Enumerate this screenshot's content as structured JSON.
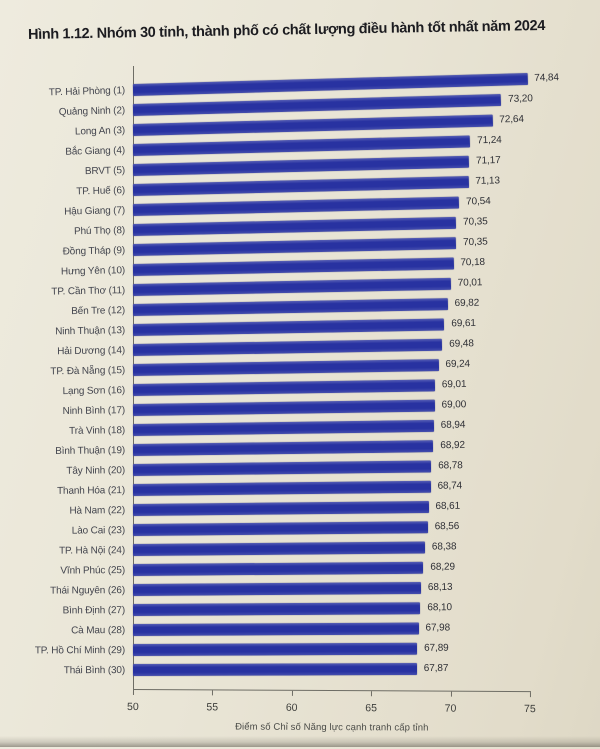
{
  "page": {
    "title": "Hình 1.12. Nhóm 30 tỉnh, thành phố có chất lượng điều hành tốt nhất năm 2024"
  },
  "colors": {
    "bar": "#2832a1",
    "paper": "#e9e5d6",
    "axis": "#6e6d65"
  },
  "chart_data": {
    "type": "bar",
    "orientation": "horizontal",
    "title": "Hình 1.12. Nhóm 30 tỉnh, thành phố có chất lượng điều hành tốt nhất năm 2024",
    "xlabel": "Điểm số Chỉ số Năng lực cạnh tranh cấp tỉnh",
    "ylabel": "",
    "xlim": [
      50,
      75
    ],
    "xticks": [
      50,
      55,
      60,
      65,
      70,
      75
    ],
    "grid": false,
    "legend": null,
    "categories": [
      "TP. Hải Phòng (1)",
      "Quảng Ninh (2)",
      "Long An (3)",
      "Bắc Giang (4)",
      "BRVT (5)",
      "TP. Huế (6)",
      "Hậu Giang (7)",
      "Phú Thọ (8)",
      "Đồng Tháp (9)",
      "Hưng Yên (10)",
      "TP. Cần Thơ (11)",
      "Bến Tre (12)",
      "Ninh Thuận (13)",
      "Hải Dương (14)",
      "TP. Đà Nẵng (15)",
      "Lạng Sơn (16)",
      "Ninh Bình (17)",
      "Trà Vinh (18)",
      "Bình Thuận (19)",
      "Tây Ninh (20)",
      "Thanh Hóa (21)",
      "Hà Nam (22)",
      "Lào Cai (23)",
      "TP. Hà Nội (24)",
      "Vĩnh Phúc (25)",
      "Thái Nguyên (26)",
      "Bình Định (27)",
      "Cà Mau (28)",
      "TP. Hồ Chí Minh (29)",
      "Thái Bình (30)"
    ],
    "values": [
      74.84,
      73.2,
      72.64,
      71.24,
      71.17,
      71.13,
      70.54,
      70.35,
      70.35,
      70.18,
      70.01,
      69.82,
      69.61,
      69.48,
      69.24,
      69.01,
      69.0,
      68.94,
      68.92,
      68.78,
      68.74,
      68.61,
      68.56,
      68.38,
      68.29,
      68.13,
      68.1,
      67.98,
      67.89,
      67.87
    ],
    "value_labels": [
      "74,84",
      "73,20",
      "72,64",
      "71,24",
      "71,17",
      "71,13",
      "70,54",
      "70,35",
      "70,35",
      "70,18",
      "70,01",
      "69,82",
      "69,61",
      "69,48",
      "69,24",
      "69,01",
      "69,00",
      "68,94",
      "68,92",
      "68,78",
      "68,74",
      "68,61",
      "68,56",
      "68,38",
      "68,29",
      "68,13",
      "68,10",
      "67,98",
      "67,89",
      "67,87"
    ]
  }
}
